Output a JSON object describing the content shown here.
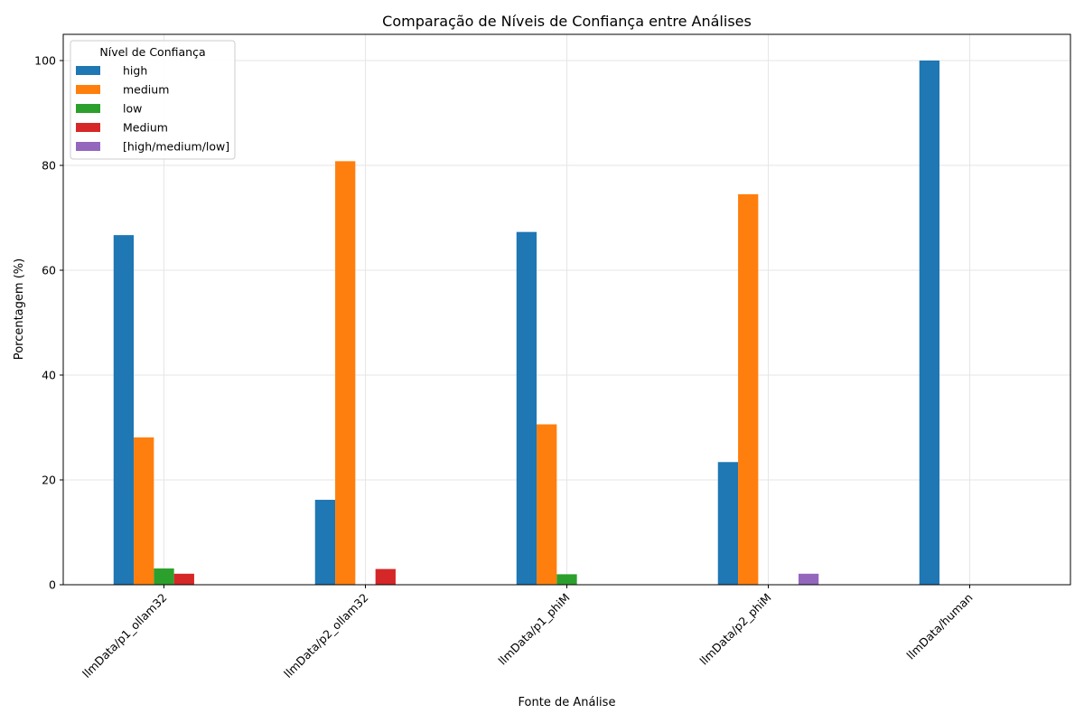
{
  "chart_data": {
    "type": "bar",
    "title": "Comparação de Níveis de Confiança entre Análises",
    "xlabel": "Fonte de Análise",
    "ylabel": "Porcentagem (%)",
    "ylim": [
      0,
      105
    ],
    "yticks": [
      0,
      20,
      40,
      60,
      80,
      100
    ],
    "grid": true,
    "categories": [
      "llmData/p1_ollam32",
      "llmData/p2_ollam32",
      "llmData/p1_phiM",
      "llmData/p2_phiM",
      "llmData/human"
    ],
    "legend": {
      "title": "Nível de Confiança",
      "placement": "upper-left"
    },
    "series": [
      {
        "name": "high",
        "color": "#1f77b4",
        "values": [
          66.7,
          16.2,
          67.3,
          23.4,
          100
        ]
      },
      {
        "name": "medium",
        "color": "#ff7f0e",
        "values": [
          28.1,
          80.8,
          30.6,
          74.5,
          0
        ]
      },
      {
        "name": "low",
        "color": "#2ca02c",
        "values": [
          3.1,
          0,
          2.0,
          0,
          0
        ]
      },
      {
        "name": "Medium",
        "color": "#d62728",
        "values": [
          2.1,
          3.0,
          0,
          0,
          0
        ]
      },
      {
        "name": "[high/medium/low]",
        "color": "#9467bd",
        "values": [
          0,
          0,
          0,
          2.1,
          0
        ]
      }
    ]
  }
}
